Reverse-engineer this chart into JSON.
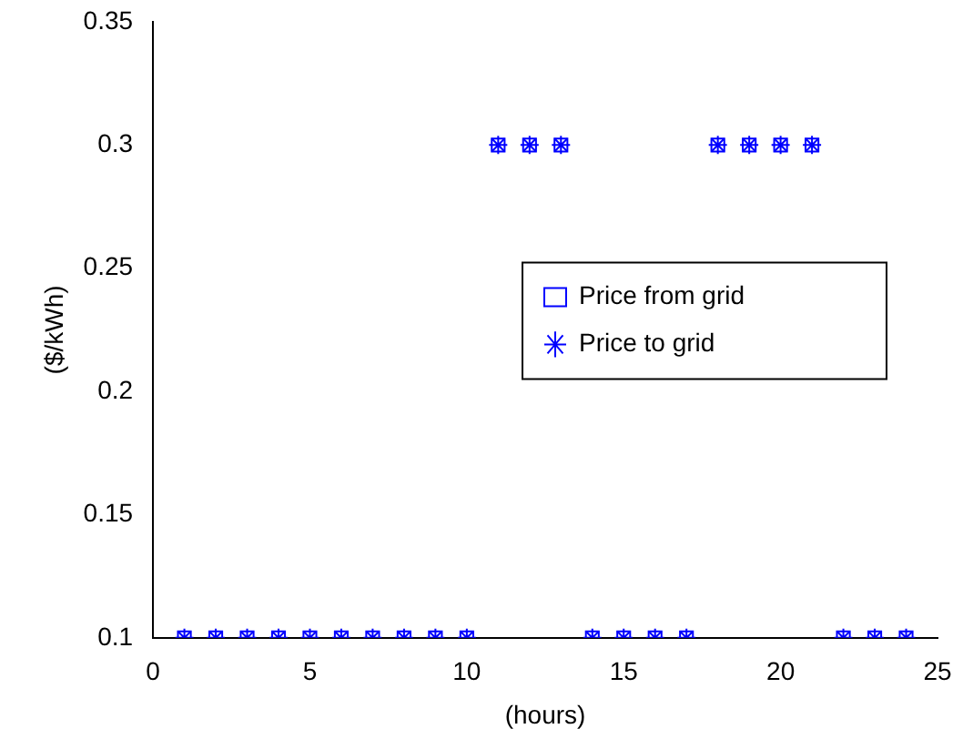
{
  "chart_data": {
    "type": "scatter",
    "xlabel": "(hours)",
    "ylabel": "($/kWh)",
    "x": [
      1,
      2,
      3,
      4,
      5,
      6,
      7,
      8,
      9,
      10,
      11,
      12,
      13,
      14,
      15,
      16,
      17,
      18,
      19,
      20,
      21,
      22,
      23,
      24
    ],
    "series": [
      {
        "name": "Price from grid",
        "color": "#0000ff",
        "marker": "square",
        "values": [
          0.1,
          0.1,
          0.1,
          0.1,
          0.1,
          0.1,
          0.1,
          0.1,
          0.1,
          0.1,
          0.3,
          0.3,
          0.3,
          0.1,
          0.1,
          0.1,
          0.1,
          0.3,
          0.3,
          0.3,
          0.3,
          0.1,
          0.1,
          0.1
        ]
      },
      {
        "name": "Price to grid",
        "color": "#0000ff",
        "marker": "cross",
        "values": [
          0.1,
          0.1,
          0.1,
          0.1,
          0.1,
          0.1,
          0.1,
          0.1,
          0.1,
          0.1,
          0.3,
          0.3,
          0.3,
          0.1,
          0.1,
          0.1,
          0.1,
          0.3,
          0.3,
          0.3,
          0.3,
          0.1,
          0.1,
          0.1
        ]
      }
    ],
    "xlim": [
      0,
      25
    ],
    "xticks": [
      0,
      5,
      10,
      15,
      20,
      25
    ],
    "ylim": [
      0.1,
      0.35
    ],
    "yticks": [
      0.1,
      0.15,
      0.2,
      0.25,
      0.3,
      0.35
    ],
    "grid": false,
    "legend": "right"
  }
}
